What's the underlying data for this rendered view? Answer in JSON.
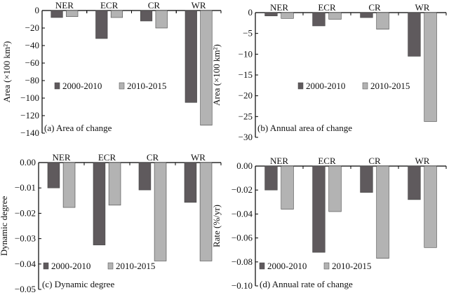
{
  "colors": {
    "2000-2010": "#5f5a5d",
    "2010-2015": "#b3b3b3"
  },
  "chart_data": [
    {
      "id": "a",
      "type": "bar",
      "categories": [
        "NER",
        "ECR",
        "CR",
        "WR"
      ],
      "series": [
        {
          "name": "2000-2010",
          "values": [
            -8,
            -32,
            -12,
            -105
          ]
        },
        {
          "name": "2010-2015",
          "values": [
            -7,
            -8,
            -20,
            -131
          ]
        }
      ],
      "ylabel": "Area (×100 km²)",
      "caption": "(a) Area of change",
      "ylim": [
        -140,
        0
      ],
      "yticks": [
        0,
        -20,
        -40,
        -60,
        -80,
        -100,
        -120,
        -140
      ],
      "ytick_labels": [
        "0",
        "−20",
        "−40",
        "−60",
        "−80",
        "−100",
        "−120",
        "−140"
      ],
      "legend_position": "center"
    },
    {
      "id": "b",
      "type": "bar",
      "categories": [
        "NER",
        "ECR",
        "CR",
        "WR"
      ],
      "series": [
        {
          "name": "2000-2010",
          "values": [
            -0.8,
            -3.2,
            -1.2,
            -10.5
          ]
        },
        {
          "name": "2010-2015",
          "values": [
            -1.4,
            -1.6,
            -4.0,
            -26.2
          ]
        }
      ],
      "ylabel": "Area (×100 km²)",
      "caption": "(b) Annual area of change",
      "ylim": [
        -30,
        0
      ],
      "yticks": [
        0,
        -5,
        -10,
        -15,
        -20,
        -25,
        -30
      ],
      "ytick_labels": [
        "0",
        "−5",
        "−10",
        "−15",
        "−20",
        "−25",
        "−30"
      ],
      "legend_position": "center"
    },
    {
      "id": "c",
      "type": "bar",
      "categories": [
        "NER",
        "ECR",
        "CR",
        "WR"
      ],
      "series": [
        {
          "name": "2000-2010",
          "values": [
            -0.01,
            -0.0325,
            -0.0108,
            -0.0157
          ]
        },
        {
          "name": "2010-2015",
          "values": [
            -0.0177,
            -0.0168,
            -0.0388,
            -0.0388
          ]
        }
      ],
      "ylabel": "Dynamic degree",
      "caption": "(c) Dynamic degree",
      "ylim": [
        -0.05,
        0
      ],
      "yticks": [
        0,
        -0.01,
        -0.02,
        -0.03,
        -0.04,
        -0.05
      ],
      "ytick_labels": [
        "0.00",
        "−0.01",
        "−0.02",
        "−0.03",
        "−0.04",
        "−0.05"
      ],
      "legend_position": "bottom-left"
    },
    {
      "id": "d",
      "type": "bar",
      "categories": [
        "NER",
        "ECR",
        "CR",
        "WR"
      ],
      "series": [
        {
          "name": "2000-2010",
          "values": [
            -0.02,
            -0.072,
            -0.022,
            -0.028
          ]
        },
        {
          "name": "2010-2015",
          "values": [
            -0.036,
            -0.038,
            -0.077,
            -0.068
          ]
        }
      ],
      "ylabel": "Rate (%/yr)",
      "caption": "(d) Annual rate of change",
      "ylim": [
        -0.1,
        0
      ],
      "yticks": [
        0,
        -0.02,
        -0.04,
        -0.06,
        -0.08,
        -0.1
      ],
      "ytick_labels": [
        "0.00",
        "−0.02",
        "−0.04",
        "−0.06",
        "−0.08",
        "−0.10"
      ],
      "legend_position": "bottom-left"
    }
  ]
}
